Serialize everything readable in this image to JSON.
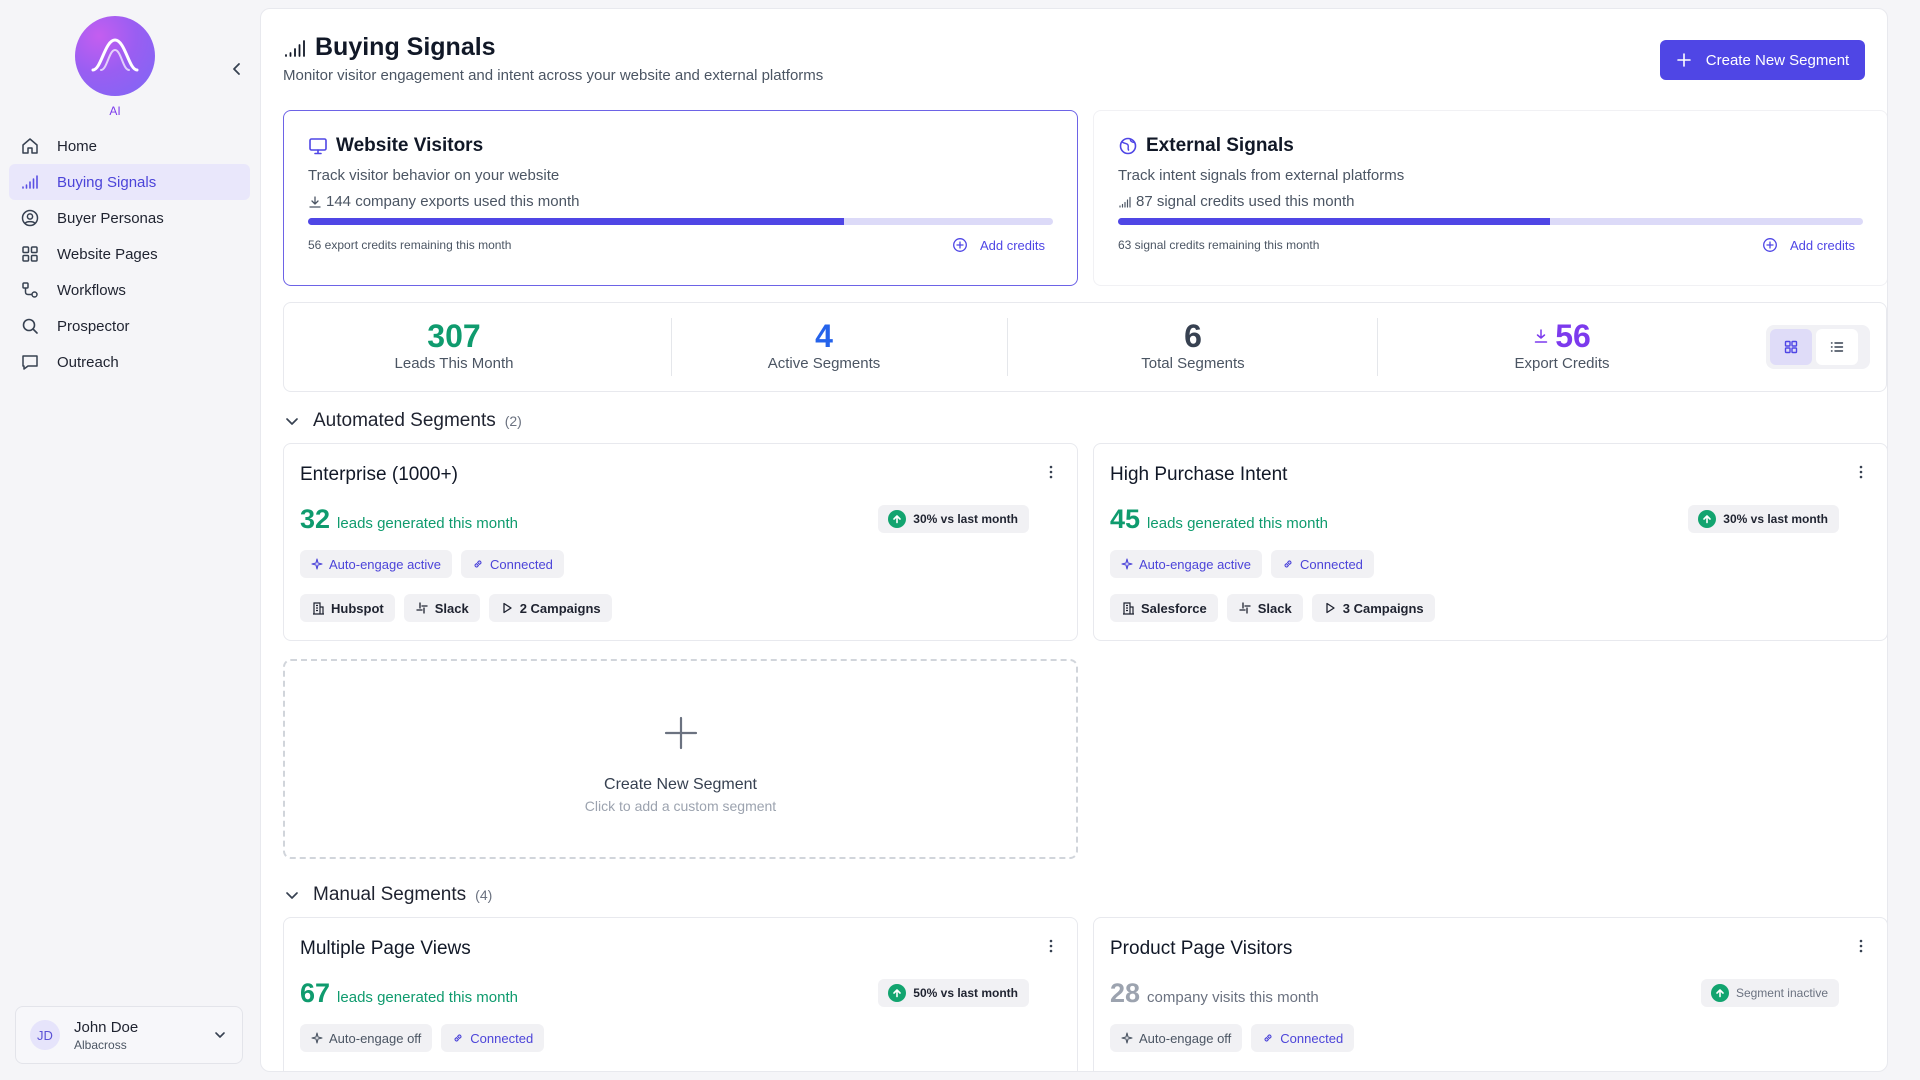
{
  "sidebar": {
    "logo_label": "AI",
    "nav": [
      {
        "label": "Home"
      },
      {
        "label": "Buying Signals"
      },
      {
        "label": "Buyer Personas"
      },
      {
        "label": "Website Pages"
      },
      {
        "label": "Workflows"
      },
      {
        "label": "Prospector"
      },
      {
        "label": "Outreach"
      }
    ],
    "user": {
      "initials": "JD",
      "name": "John Doe",
      "org": "Albacross"
    }
  },
  "header": {
    "title": "Buying Signals",
    "subtitle": "Monitor visitor engagement and intent across your website and external platforms",
    "create_button": "Create New Segment"
  },
  "panels": {
    "website": {
      "title": "Website Visitors",
      "desc": "Track visitor behavior on your website",
      "usage": "144 company exports used this month",
      "progress": 0.72,
      "remaining": "56 export credits remaining this month",
      "add_credits": "Add credits"
    },
    "external": {
      "title": "External Signals",
      "desc": "Track intent signals from external platforms",
      "usage": "87 signal credits used this month",
      "progress": 0.58,
      "remaining": "63 signal credits remaining this month",
      "add_credits": "Add credits"
    }
  },
  "stats": [
    {
      "value": "307",
      "label": "Leads This Month",
      "color": "#0f9b6e"
    },
    {
      "value": "4",
      "label": "Active Segments",
      "color": "#2563eb"
    },
    {
      "value": "6",
      "label": "Total Segments",
      "color": "#374151"
    },
    {
      "value": "56",
      "label": "Export Credits",
      "color": "#7c3aed"
    }
  ],
  "automated": {
    "title": "Automated Segments",
    "count": "(2)",
    "cards": [
      {
        "title": "Enterprise (1000+)",
        "num": "32",
        "sub": "leads generated this month",
        "trend": "30% vs last month",
        "chips": [
          "Auto-engage active",
          "Connected"
        ],
        "integrations": [
          "Hubspot",
          "Slack",
          "2 Campaigns"
        ]
      },
      {
        "title": "High Purchase Intent",
        "num": "45",
        "sub": "leads generated this month",
        "trend": "30% vs last month",
        "chips": [
          "Auto-engage active",
          "Connected"
        ],
        "integrations": [
          "Salesforce",
          "Slack",
          "3 Campaigns"
        ]
      }
    ]
  },
  "new_segment": {
    "title": "Create New Segment",
    "sub": "Click to add a custom segment"
  },
  "manual": {
    "title": "Manual Segments",
    "count": "(4)",
    "cards": [
      {
        "title": "Multiple Page Views",
        "num": "67",
        "sub": "leads generated this month",
        "trend": "50% vs last month",
        "chips": [
          "Auto-engage off",
          "Connected"
        ]
      },
      {
        "title": "Product Page Visitors",
        "num": "28",
        "sub": "company visits this month",
        "trend": "Segment inactive",
        "chips": [
          "Auto-engage off",
          "Connected"
        ]
      }
    ]
  }
}
